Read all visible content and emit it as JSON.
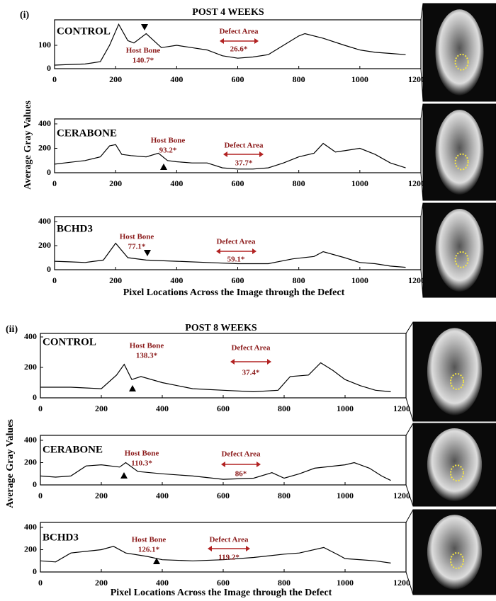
{
  "panels": [
    {
      "label": "(i)",
      "title": "POST 4 WEEKS",
      "ylabel": "Average Gray Values",
      "xlabel": "Pixel Locations Across the Image through the Defect"
    },
    {
      "label": "(ii)",
      "title": "POST 8 WEEKS",
      "ylabel": "Average Gray Values",
      "xlabel": "Pixel Locations Across the Image through the Defect"
    }
  ],
  "chart_data": [
    {
      "type": "line",
      "title": "CONTROL",
      "color": "#000000",
      "x": [
        0,
        50,
        100,
        150,
        180,
        210,
        240,
        260,
        300,
        350,
        400,
        450,
        500,
        550,
        600,
        650,
        700,
        750,
        800,
        820,
        880,
        950,
        1000,
        1050,
        1100,
        1150
      ],
      "values": [
        15,
        18,
        20,
        30,
        100,
        190,
        120,
        110,
        150,
        90,
        100,
        90,
        80,
        55,
        45,
        50,
        60,
        100,
        140,
        150,
        130,
        100,
        80,
        70,
        65,
        60
      ],
      "xlim": [
        0,
        1200
      ],
      "xticks": [
        0,
        200,
        400,
        600,
        800,
        1000,
        1200
      ],
      "ylim": [
        0,
        200
      ],
      "yticks": [
        0,
        100
      ],
      "host_bone_label": "Host Bone",
      "host_bone_value": "140.7*",
      "defect_label": "Defect Area",
      "defect_value": "26.6*"
    },
    {
      "type": "line",
      "title": "CERABONE",
      "color": "#000000",
      "x": [
        0,
        50,
        100,
        150,
        180,
        200,
        220,
        250,
        300,
        340,
        370,
        400,
        450,
        500,
        550,
        600,
        650,
        700,
        750,
        800,
        850,
        880,
        920,
        950,
        1000,
        1050,
        1100,
        1150
      ],
      "values": [
        70,
        85,
        100,
        130,
        220,
        230,
        150,
        140,
        130,
        160,
        100,
        90,
        80,
        80,
        40,
        30,
        30,
        40,
        80,
        130,
        160,
        240,
        170,
        180,
        200,
        150,
        80,
        40
      ],
      "xlim": [
        0,
        1200
      ],
      "xticks": [
        0,
        200,
        400,
        600,
        800,
        1000,
        1200
      ],
      "ylim": [
        0,
        400
      ],
      "yticks": [
        0,
        200,
        400
      ],
      "host_bone_label": "Host Bone",
      "host_bone_value": "93.2*",
      "defect_label": "Defect Area",
      "defect_value": "37.7*"
    },
    {
      "type": "line",
      "title": "BCHD3",
      "color": "#000000",
      "x": [
        0,
        50,
        100,
        160,
        200,
        240,
        300,
        400,
        500,
        600,
        700,
        780,
        850,
        880,
        950,
        1000,
        1050,
        1100,
        1150
      ],
      "values": [
        70,
        65,
        60,
        80,
        220,
        100,
        80,
        70,
        60,
        50,
        50,
        90,
        110,
        150,
        100,
        60,
        50,
        30,
        20
      ],
      "xlim": [
        0,
        1200
      ],
      "xticks": [
        0,
        200,
        400,
        600,
        800,
        1000,
        1200
      ],
      "ylim": [
        0,
        400
      ],
      "yticks": [
        0,
        200,
        400
      ],
      "host_bone_label": "Host Bone",
      "host_bone_value": "77.1*",
      "defect_label": "Defect Area",
      "defect_value": "59.1*"
    },
    {
      "type": "line",
      "title": "CONTROL",
      "color": "#000000",
      "x": [
        0,
        100,
        200,
        250,
        275,
        300,
        330,
        400,
        500,
        600,
        700,
        780,
        820,
        880,
        920,
        960,
        1000,
        1050,
        1100,
        1150
      ],
      "values": [
        70,
        70,
        60,
        150,
        220,
        120,
        140,
        100,
        60,
        50,
        40,
        50,
        140,
        150,
        230,
        180,
        120,
        80,
        50,
        40
      ],
      "xlim": [
        0,
        1200
      ],
      "xticks": [
        0,
        200,
        400,
        600,
        800,
        1000,
        1200
      ],
      "ylim": [
        0,
        400
      ],
      "yticks": [
        0,
        200,
        400
      ],
      "host_bone_label": "Host Bone",
      "host_bone_value": "138.3*",
      "defect_label": "Defect Area",
      "defect_value": "37.4*"
    },
    {
      "type": "line",
      "title": "CERABONE",
      "color": "#000000",
      "x": [
        0,
        50,
        100,
        150,
        200,
        260,
        280,
        320,
        400,
        500,
        600,
        700,
        760,
        800,
        850,
        900,
        1000,
        1030,
        1080,
        1120,
        1150
      ],
      "values": [
        80,
        70,
        80,
        170,
        180,
        160,
        200,
        120,
        100,
        80,
        50,
        60,
        110,
        60,
        100,
        150,
        180,
        200,
        150,
        80,
        40
      ],
      "xlim": [
        0,
        1200
      ],
      "xticks": [
        0,
        200,
        400,
        600,
        800,
        1000,
        1200
      ],
      "ylim": [
        0,
        400
      ],
      "yticks": [
        0,
        200,
        400
      ],
      "host_bone_label": "Host Bone",
      "host_bone_value": "110.3*",
      "defect_label": "Defect Area",
      "defect_value": "86*"
    },
    {
      "type": "line",
      "title": "BCHD3",
      "color": "#000000",
      "x": [
        0,
        50,
        100,
        200,
        240,
        280,
        350,
        400,
        500,
        600,
        700,
        800,
        850,
        930,
        980,
        1000,
        1100,
        1150
      ],
      "values": [
        100,
        90,
        170,
        200,
        230,
        170,
        140,
        110,
        100,
        110,
        130,
        160,
        170,
        220,
        150,
        120,
        100,
        80
      ],
      "xlim": [
        0,
        1200
      ],
      "xticks": [
        0,
        200,
        400,
        600,
        800,
        1000,
        1200
      ],
      "ylim": [
        0,
        400
      ],
      "yticks": [
        0,
        200,
        400
      ],
      "host_bone_label": "Host Bone",
      "host_bone_value": "126.1*",
      "defect_label": "Defect Area",
      "defect_value": "119.2*"
    }
  ]
}
